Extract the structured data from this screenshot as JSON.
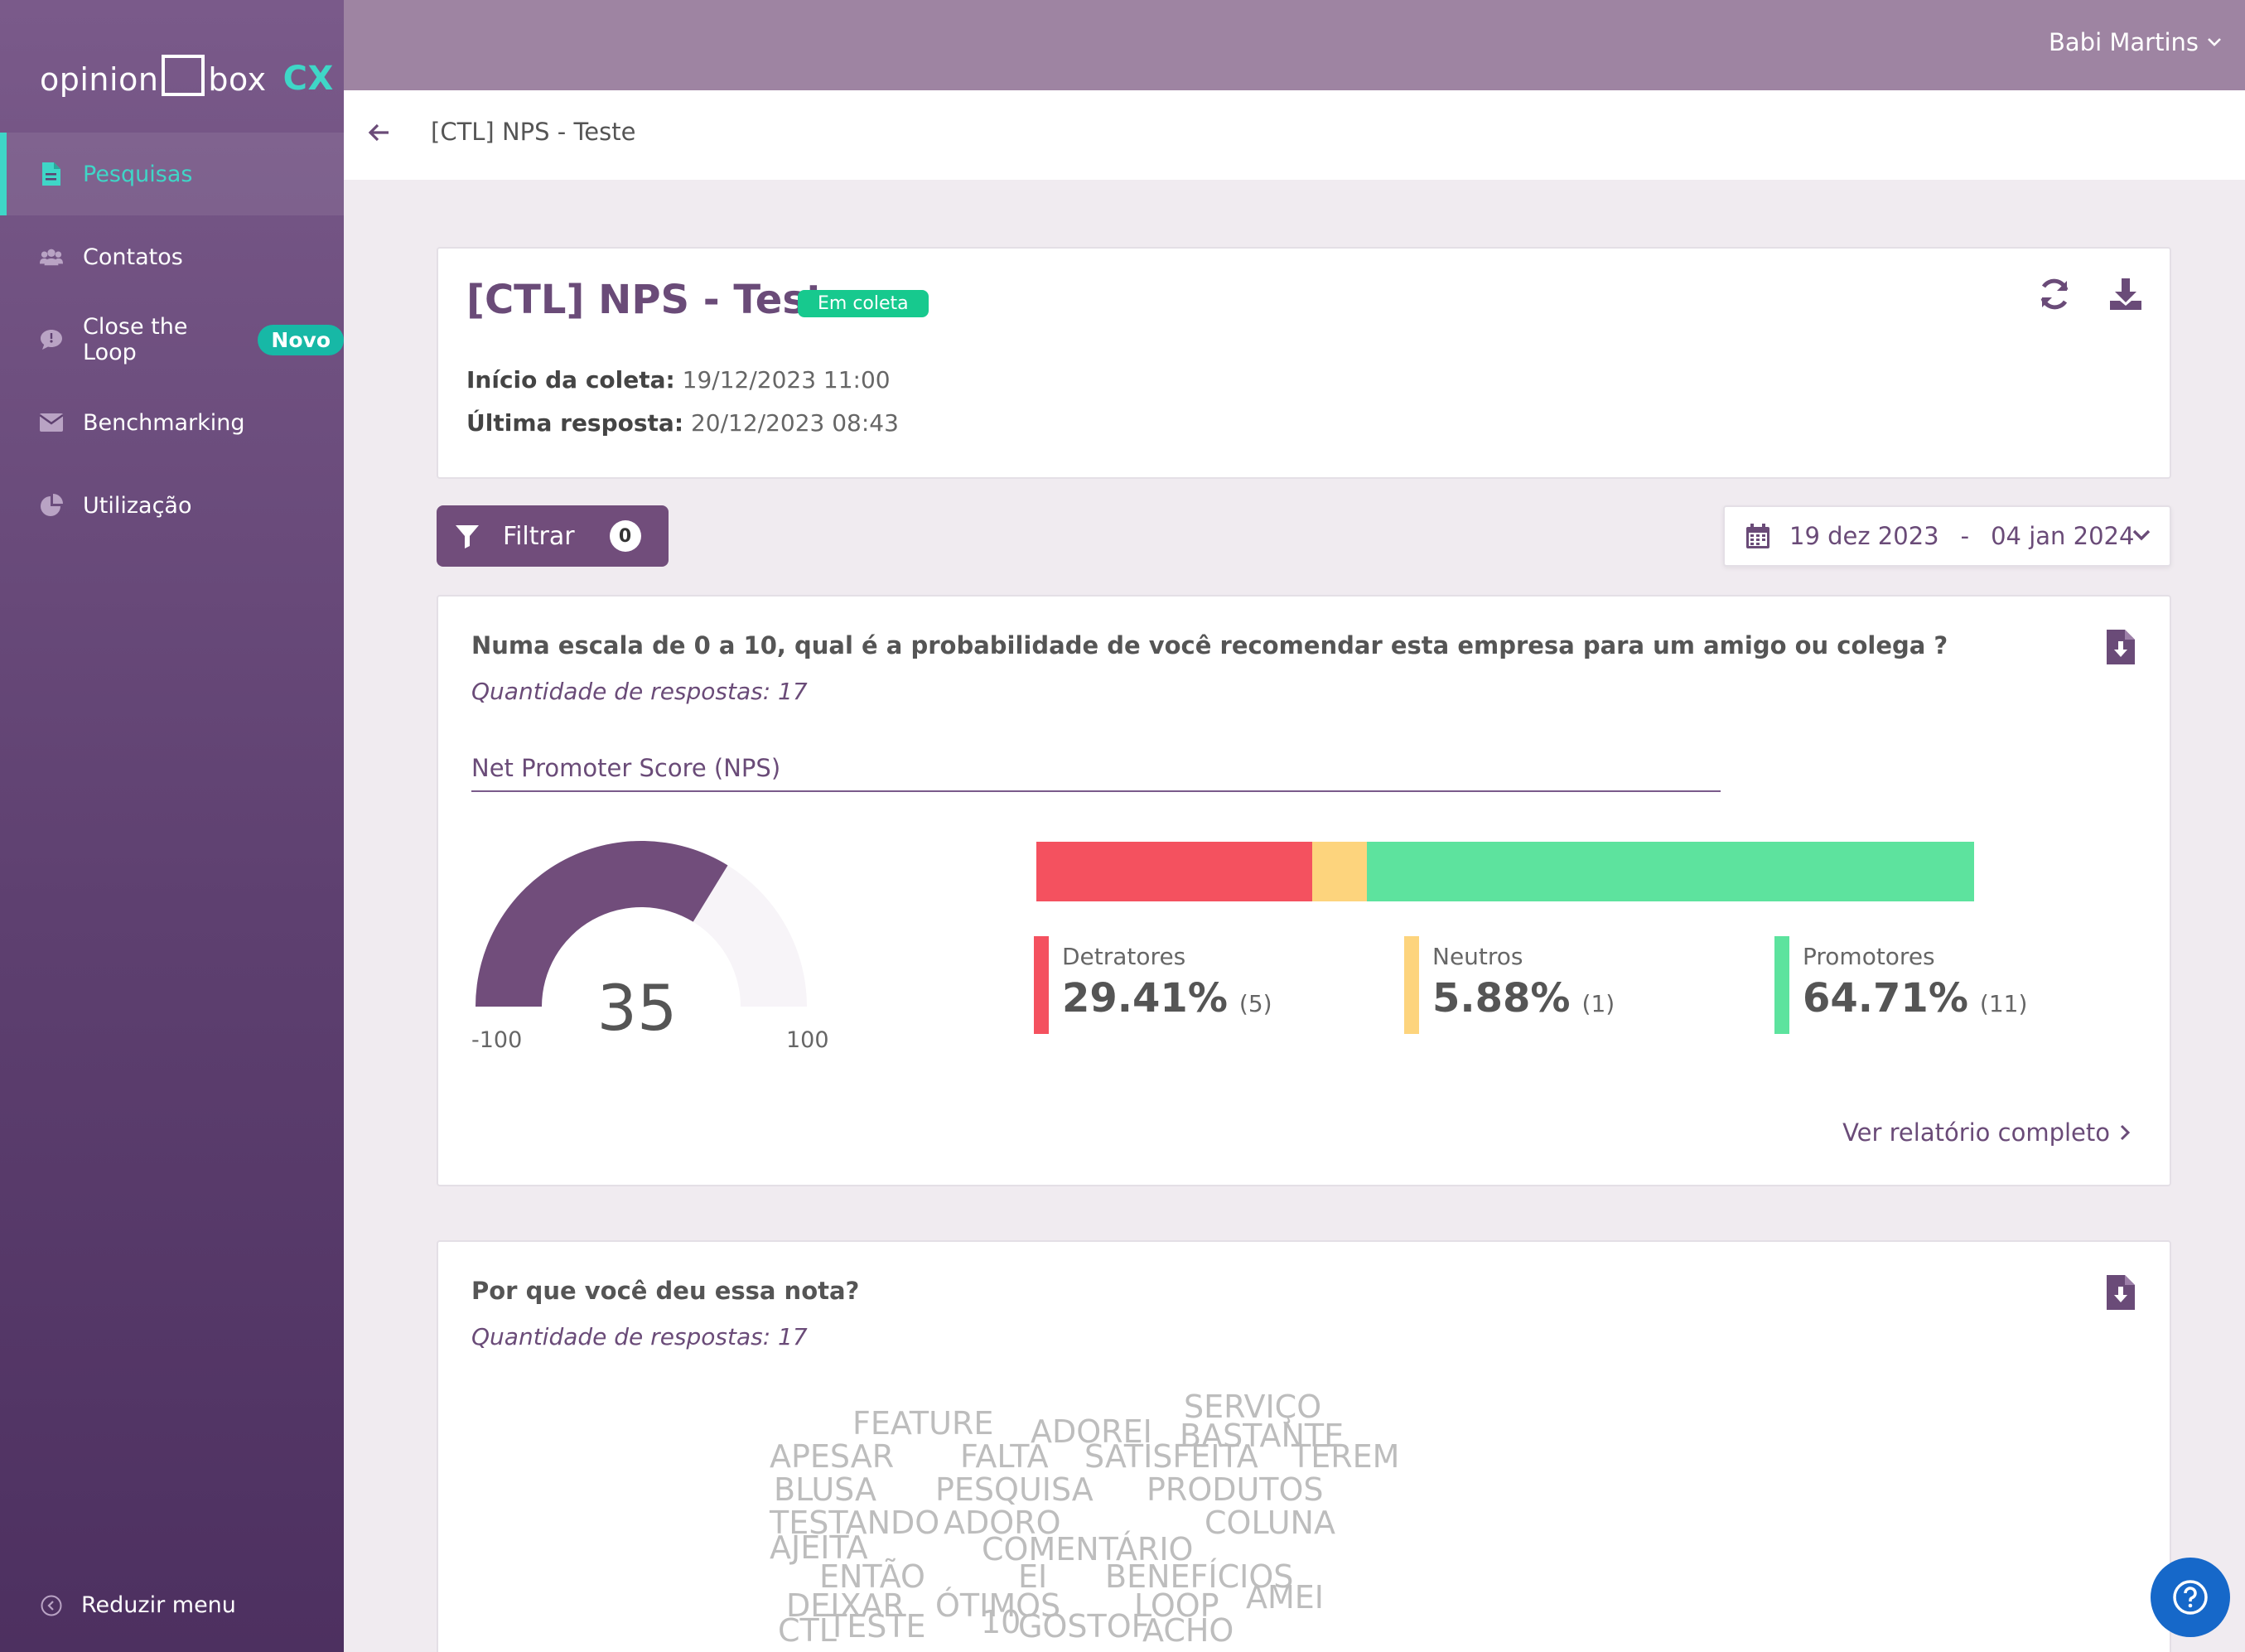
{
  "brand": {
    "word1": "opinion",
    "word2": "box",
    "suffix": "CX",
    "accent": "#3fd6c7"
  },
  "sidebar": {
    "items": [
      {
        "label": "Pesquisas",
        "icon": "document-icon",
        "active": true
      },
      {
        "label": "Contatos",
        "icon": "people-icon"
      },
      {
        "label": "Close the Loop",
        "icon": "chat-bubble-icon",
        "badge": "Novo"
      },
      {
        "label": "Benchmarking",
        "icon": "envelope-icon"
      },
      {
        "label": "Utilização",
        "icon": "pie-chart-icon"
      }
    ],
    "reduce_label": "Reduzir menu"
  },
  "header": {
    "user_name": "Babi Martins"
  },
  "breadcrumb": {
    "title": "[CTL] NPS - Teste"
  },
  "survey": {
    "title": "[CTL] NPS - Teste",
    "status": "Em coleta",
    "start_label": "Início da coleta:",
    "start_value": "19/12/2023 11:00",
    "last_label": "Última resposta:",
    "last_value": "20/12/2023 08:43"
  },
  "filter": {
    "label": "Filtrar",
    "count": "0"
  },
  "date_range": {
    "from": "19 dez 2023",
    "separator": "-",
    "to": "04 jan 2024"
  },
  "nps_card": {
    "question": "Numa escala de 0 a 10, qual é a probabilidade de você recomendar esta empresa para um amigo ou colega ?",
    "count_label": "Quantidade de respostas: 17",
    "section_label": "Net Promoter Score (NPS)",
    "score": "35",
    "score_value": 35,
    "min": "-100",
    "max": "100",
    "segments": [
      {
        "name": "Detratores",
        "pct": "29.41%",
        "count": "(5)",
        "fraction": 0.2941,
        "color": "#f4515f"
      },
      {
        "name": "Neutros",
        "pct": "5.88%",
        "count": "(1)",
        "fraction": 0.0588,
        "color": "#fdd47d"
      },
      {
        "name": "Promotores",
        "pct": "64.71%",
        "count": "(11)",
        "fraction": 0.6471,
        "color": "#5de39e"
      }
    ],
    "report_link": "Ver relatório completo"
  },
  "why_card": {
    "question": "Por que você deu essa nota?",
    "count_label": "Quantidade de respostas: 17",
    "words": [
      "SERVIÇO",
      "FEATURE",
      "ADOREI",
      "BASTANTE",
      "APESAR",
      "FALTA",
      "SATISFEITA",
      "TEREM",
      "BLUSA",
      "PESQUISA",
      "PRODUTOS",
      "TESTANDO",
      "ADORO",
      "AJEITA",
      "COMENTÁRIO",
      "COLUNA",
      "ENTÃO",
      "EI",
      "BENEFÍCIOS",
      "DEIXAR",
      "ÓTIMOS",
      "LOOP",
      "AMEI",
      "CTL",
      "TESTE",
      "10",
      "GOSTOF",
      "ACHO"
    ]
  },
  "colors": {
    "primary": "#714d7b",
    "status_green": "#17c98e",
    "help_blue": "#1668c9"
  }
}
